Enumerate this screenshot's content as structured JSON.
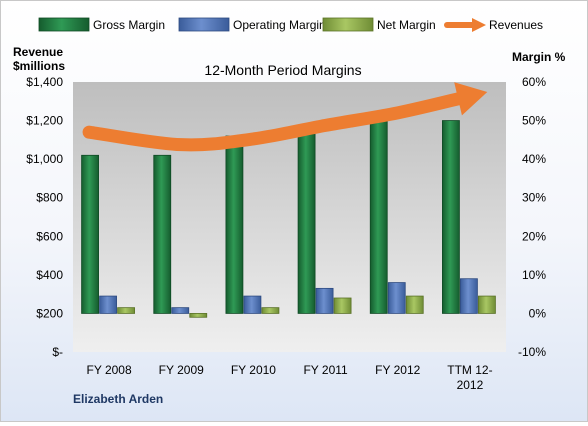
{
  "chart_data": {
    "type": "bar",
    "title": "12-Month Period Margins",
    "company": "Elizabeth Arden",
    "y_left_label": [
      "Revenue",
      "$millions"
    ],
    "y_right_label": "Margin %",
    "categories": [
      "FY 2008",
      "FY 2009",
      "FY 2010",
      "FY 2011",
      "FY 2012",
      "TTM 12-2012"
    ],
    "y_left_ticks": [
      "$-",
      "$200",
      "$400",
      "$600",
      "$800",
      "$1,000",
      "$1,200",
      "$1,400"
    ],
    "y_left_lim": [
      0,
      1400
    ],
    "y_right_ticks": [
      "-10%",
      "0%",
      "10%",
      "20%",
      "30%",
      "40%",
      "50%",
      "60%"
    ],
    "y_right_lim": [
      -10,
      60
    ],
    "legend_position": "top",
    "grid": false,
    "series": [
      {
        "name": "Gross Margin",
        "axis": "right",
        "unit": "%",
        "color": "#1f7a3f",
        "values": [
          41,
          41,
          46,
          48,
          50,
          50
        ]
      },
      {
        "name": "Operating Margin",
        "axis": "right",
        "unit": "%",
        "color": "#4f73b5",
        "values": [
          4.5,
          1.5,
          4.5,
          6.5,
          8,
          9
        ]
      },
      {
        "name": "Net Margin",
        "axis": "right",
        "unit": "%",
        "color": "#8fb04a",
        "values": [
          1.5,
          -1,
          1.5,
          4,
          4.5,
          4.5
        ]
      },
      {
        "name": "Revenues",
        "axis": "left",
        "unit": "$M",
        "type": "line",
        "color": "#ed7d31",
        "values": [
          1140,
          1075,
          1105,
          1175,
          1240,
          1320
        ]
      }
    ]
  }
}
